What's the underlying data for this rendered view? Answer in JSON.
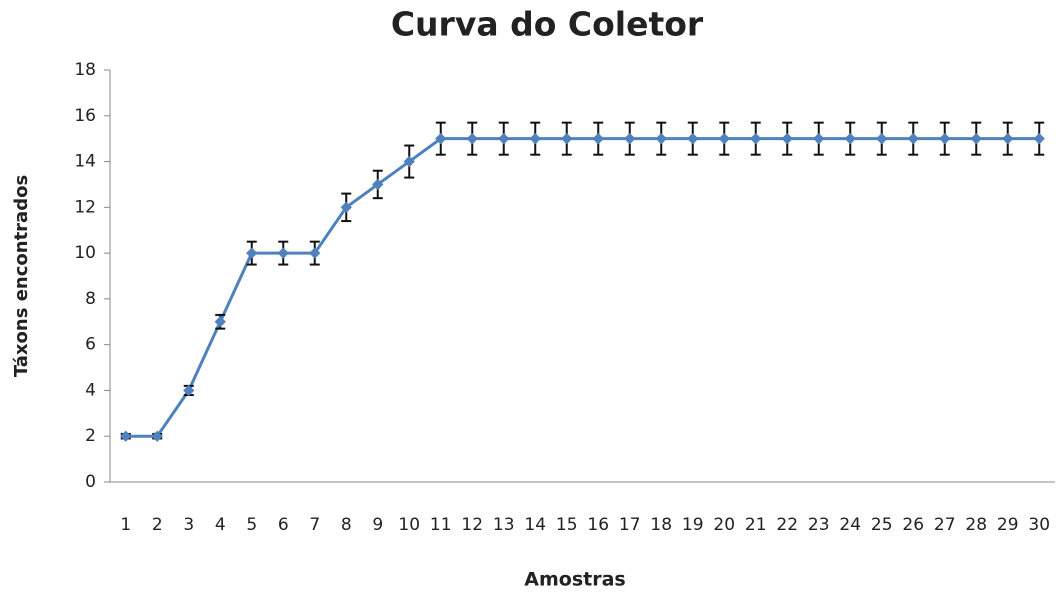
{
  "chart_data": {
    "type": "line",
    "title": "Curva do Coletor",
    "x_label": "Amostras",
    "y_label": "Táxons encontrados",
    "categories": [
      "1",
      "2",
      "3",
      "4",
      "5",
      "6",
      "7",
      "8",
      "9",
      "10",
      "11",
      "12",
      "13",
      "14",
      "15",
      "16",
      "17",
      "18",
      "19",
      "20",
      "21",
      "22",
      "23",
      "24",
      "25",
      "26",
      "27",
      "28",
      "29",
      "30"
    ],
    "series": [
      {
        "name": "Táxons",
        "color": "#4f81bd",
        "values": [
          2,
          2,
          4,
          7,
          10,
          10,
          10,
          12,
          13,
          14,
          15,
          15,
          15,
          15,
          15,
          15,
          15,
          15,
          15,
          15,
          15,
          15,
          15,
          15,
          15,
          15,
          15,
          15,
          15,
          15
        ],
        "errors": [
          0.1,
          0.1,
          0.2,
          0.3,
          0.5,
          0.5,
          0.5,
          0.6,
          0.6,
          0.7,
          0.7,
          0.7,
          0.7,
          0.7,
          0.7,
          0.7,
          0.7,
          0.7,
          0.7,
          0.7,
          0.7,
          0.7,
          0.7,
          0.7,
          0.7,
          0.7,
          0.7,
          0.7,
          0.7,
          0.7
        ]
      }
    ],
    "ylim": [
      0,
      18
    ],
    "yticks": [
      0,
      2,
      4,
      6,
      8,
      10,
      12,
      14,
      16,
      18
    ],
    "grid": false
  }
}
